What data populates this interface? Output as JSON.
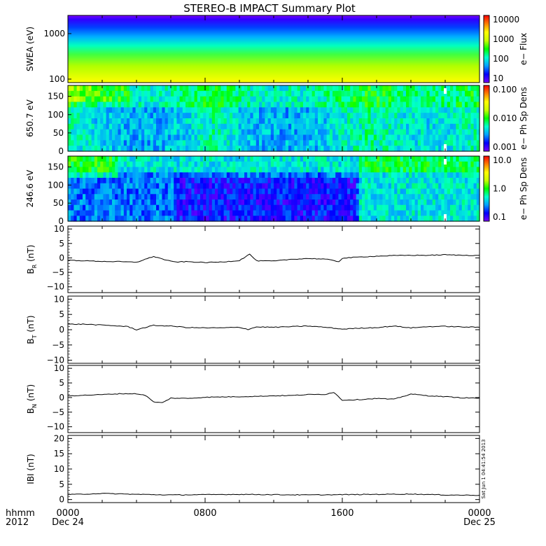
{
  "title": "STEREO-B IMPACT Summary Plot",
  "footer": {
    "time_label": "hhmm",
    "year_label": "2012",
    "ticks": [
      {
        "hhmm": "0000",
        "date": "Dec 24"
      },
      {
        "hhmm": "0800",
        "date": ""
      },
      {
        "hhmm": "1600",
        "date": ""
      },
      {
        "hhmm": "0000",
        "date": "Dec 25"
      }
    ],
    "timestamp": "Sat Jun 1 04:41:54 2013"
  },
  "colors": {
    "axis": "#000000",
    "trace": "#000000",
    "spectrogram_scale": [
      "#7a00ff",
      "#0000ff",
      "#00a0ff",
      "#00ffd0",
      "#00ff00",
      "#c8ff00",
      "#ffff00",
      "#ff8000",
      "#ff0000"
    ]
  },
  "chart_data": [
    {
      "type": "heatmap",
      "ylabel": "SWEA (eV)",
      "ylog": true,
      "y_ticks": [
        "1000",
        "100"
      ],
      "colorbar": {
        "label": "e− Flux",
        "ticks": [
          "10000",
          "1000",
          "100",
          "10"
        ],
        "log": true
      }
    },
    {
      "type": "heatmap",
      "ylabel": "650.7 eV",
      "ylim": [
        0,
        180
      ],
      "y_ticks": [
        "150",
        "100",
        "50",
        "0"
      ],
      "colorbar": {
        "label": "e− Ph Sp Dens",
        "ticks": [
          "0.100",
          "0.010",
          "0.001"
        ],
        "log": true
      }
    },
    {
      "type": "heatmap",
      "ylabel": "246.6 eV",
      "ylim": [
        0,
        180
      ],
      "y_ticks": [
        "150",
        "100",
        "50",
        "0"
      ],
      "colorbar": {
        "label": "e− Ph Sp Dens",
        "ticks": [
          "10.0",
          "1.0",
          "0.1"
        ],
        "log": true
      }
    },
    {
      "type": "line",
      "ylabel": "B_R (nT)",
      "ylabel_main": "B",
      "ylabel_sub": "R",
      "ylabel_unit": "(nT)",
      "ylim": [
        -12,
        11
      ],
      "y_ticks": [
        "10",
        "5",
        "0",
        "−5",
        "−10"
      ],
      "x": [
        0,
        1,
        2,
        3,
        4,
        5,
        6,
        6.3,
        7,
        8,
        9,
        10,
        10.6,
        11,
        12,
        13,
        14,
        15,
        15.8,
        16,
        17,
        18,
        19,
        20,
        21,
        22,
        23,
        24
      ],
      "y": [
        -0.8,
        -1.0,
        -1.2,
        -1.3,
        -1.5,
        0.5,
        -1.2,
        -1.4,
        -1.3,
        -1.6,
        -1.4,
        -0.9,
        1.3,
        -1.0,
        -1.1,
        -0.5,
        -0.2,
        -0.4,
        -1.3,
        -0.1,
        0.3,
        0.6,
        0.8,
        0.9,
        0.9,
        1.1,
        0.9,
        0.9
      ]
    },
    {
      "type": "line",
      "ylabel": "B_T (nT)",
      "ylabel_main": "B",
      "ylabel_sub": "T",
      "ylabel_unit": "(nT)",
      "ylim": [
        -11,
        11
      ],
      "y_ticks": [
        "10",
        "5",
        "0",
        "−5",
        "−10"
      ],
      "x": [
        0,
        1,
        2,
        3,
        3.5,
        4,
        5,
        6,
        7,
        8,
        9,
        10,
        10.5,
        11,
        12,
        13,
        14,
        15,
        16,
        17,
        18,
        19,
        20,
        21,
        22,
        23,
        24
      ],
      "y": [
        1.8,
        1.8,
        1.5,
        1.2,
        1.0,
        0.0,
        1.4,
        1.2,
        0.7,
        0.6,
        0.6,
        0.8,
        0.1,
        0.9,
        0.8,
        1.0,
        1.2,
        0.8,
        0.2,
        0.5,
        0.7,
        1.2,
        0.6,
        1.0,
        1.1,
        0.9,
        0.8
      ]
    },
    {
      "type": "line",
      "ylabel": "B_N (nT)",
      "ylabel_main": "B",
      "ylabel_sub": "N",
      "ylabel_unit": "(nT)",
      "ylim": [
        -12,
        11
      ],
      "y_ticks": [
        "10",
        "5",
        "0",
        "−5",
        "−10"
      ],
      "x": [
        0,
        1,
        2,
        3,
        4,
        4.5,
        5,
        5.5,
        6,
        7,
        8,
        9,
        10,
        11,
        12,
        13,
        14,
        15,
        15.5,
        16,
        17,
        18,
        19,
        20,
        21,
        22,
        23,
        24
      ],
      "y": [
        0.6,
        0.8,
        1.0,
        1.3,
        1.3,
        0.8,
        -1.5,
        -1.8,
        -0.2,
        -0.3,
        0.1,
        0.2,
        0.3,
        0.4,
        0.6,
        0.7,
        1.0,
        1.1,
        1.8,
        -0.9,
        -0.7,
        -0.3,
        -0.6,
        1.2,
        0.6,
        0.3,
        -0.1,
        -0.2
      ]
    },
    {
      "type": "line",
      "ylabel": "|B| (nT)",
      "ylabel_main": "IBI",
      "ylabel_sub": "",
      "ylabel_unit": "(nT)",
      "ylim": [
        -1,
        21
      ],
      "y_ticks": [
        "20",
        "15",
        "10",
        "5",
        "0"
      ],
      "x": [
        0,
        2,
        4,
        6,
        8,
        10,
        12,
        14,
        16,
        18,
        20,
        22,
        24
      ],
      "y": [
        1.6,
        2.0,
        1.7,
        1.5,
        1.6,
        1.7,
        1.6,
        1.5,
        1.6,
        1.7,
        1.8,
        1.5,
        1.4
      ]
    }
  ]
}
